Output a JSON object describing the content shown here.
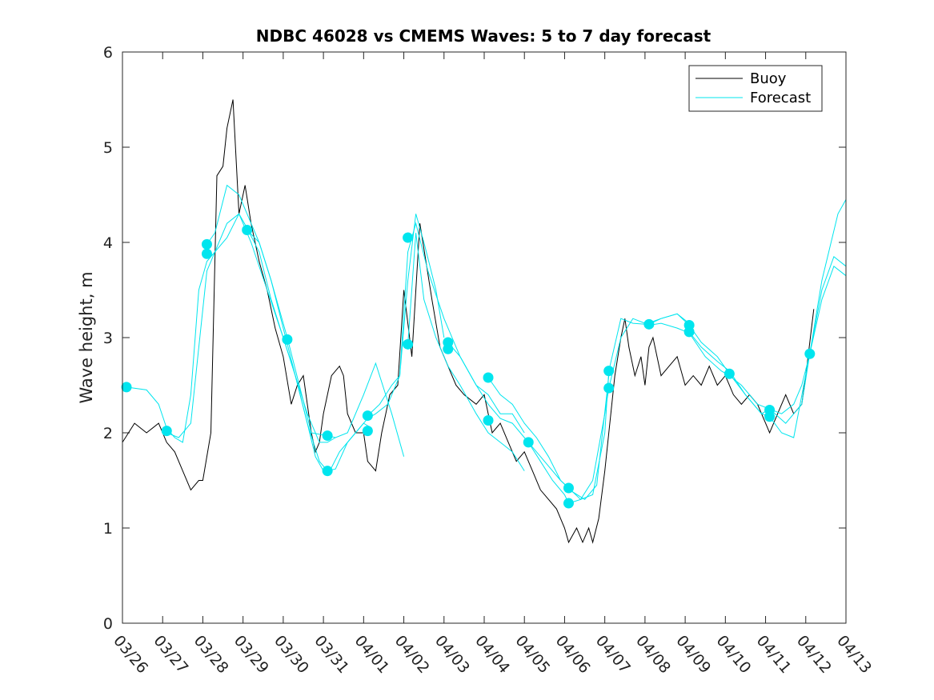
{
  "chart_data": {
    "type": "line",
    "title": "NDBC 46028 vs CMEMS Waves: 5 to 7 day forecast",
    "xlabel": "",
    "ylabel": "Wave height, m",
    "xlim": [
      0,
      18
    ],
    "ylim": [
      0,
      6
    ],
    "yticks": [
      0,
      1,
      2,
      3,
      4,
      5,
      6
    ],
    "x_tick_labels": [
      "03/26",
      "03/27",
      "03/28",
      "03/29",
      "03/30",
      "03/31",
      "04/01",
      "04/02",
      "04/03",
      "04/04",
      "04/05",
      "04/06",
      "04/07",
      "04/08",
      "04/09",
      "04/10",
      "04/11",
      "04/12",
      "04/13"
    ],
    "legend": {
      "position": "top-right",
      "entries": [
        "Buoy",
        "Forecast"
      ]
    },
    "colors": {
      "buoy": "#000000",
      "forecast": "#00e5ee"
    },
    "series": [
      {
        "name": "Buoy",
        "x": [
          0,
          0.3,
          0.6,
          0.9,
          1.1,
          1.3,
          1.5,
          1.7,
          1.9,
          2.0,
          2.2,
          2.35,
          2.5,
          2.6,
          2.75,
          2.9,
          3.05,
          3.2,
          3.4,
          3.6,
          3.8,
          4.0,
          4.2,
          4.35,
          4.5,
          4.7,
          4.8,
          4.9,
          5.0,
          5.2,
          5.4,
          5.5,
          5.6,
          5.8,
          6.0,
          6.1,
          6.3,
          6.45,
          6.55,
          6.65,
          6.85,
          7.0,
          7.2,
          7.4,
          7.55,
          7.7,
          7.9,
          8.1,
          8.3,
          8.5,
          8.8,
          9.0,
          9.2,
          9.4,
          9.6,
          9.8,
          10.0,
          10.2,
          10.4,
          10.6,
          10.8,
          11.0,
          11.1,
          11.3,
          11.45,
          11.6,
          11.7,
          11.85,
          12.0,
          12.1,
          12.25,
          12.4,
          12.5,
          12.6,
          12.75,
          12.9,
          13.0,
          13.1,
          13.2,
          13.4,
          13.6,
          13.8,
          14.0,
          14.2,
          14.4,
          14.6,
          14.8,
          15.0,
          15.2,
          15.4,
          15.6,
          15.8,
          16.0,
          16.1,
          16.3,
          16.5,
          16.7,
          16.9,
          17.0,
          17.2
        ],
        "values": [
          1.9,
          2.1,
          2.0,
          2.1,
          1.9,
          1.8,
          1.6,
          1.4,
          1.5,
          1.5,
          2.0,
          4.7,
          4.8,
          5.2,
          5.5,
          4.3,
          4.6,
          4.2,
          3.8,
          3.5,
          3.1,
          2.8,
          2.3,
          2.5,
          2.6,
          2.0,
          1.8,
          1.9,
          2.2,
          2.6,
          2.7,
          2.6,
          2.2,
          2.0,
          2.0,
          1.7,
          1.6,
          2.0,
          2.2,
          2.4,
          2.5,
          3.5,
          2.8,
          4.2,
          3.8,
          3.4,
          2.9,
          2.7,
          2.5,
          2.4,
          2.3,
          2.4,
          2.0,
          2.1,
          1.9,
          1.7,
          1.8,
          1.6,
          1.4,
          1.3,
          1.2,
          1.0,
          0.85,
          1.0,
          0.85,
          1.0,
          0.85,
          1.1,
          1.6,
          2.0,
          2.6,
          3.0,
          3.2,
          2.9,
          2.6,
          2.8,
          2.5,
          2.9,
          3.0,
          2.6,
          2.7,
          2.8,
          2.5,
          2.6,
          2.5,
          2.7,
          2.5,
          2.6,
          2.4,
          2.3,
          2.4,
          2.3,
          2.1,
          2.0,
          2.2,
          2.4,
          2.2,
          2.3,
          2.6,
          3.3
        ]
      },
      {
        "name": "Forecast run 1",
        "x": [
          0.1,
          0.6,
          0.9,
          1.1,
          1.3,
          1.5,
          1.7,
          1.9,
          2.1,
          2.3,
          2.6,
          2.9,
          3.2,
          3.6,
          4.0,
          4.3,
          4.6,
          4.9,
          5.1,
          5.3
        ],
        "values": [
          2.48,
          2.45,
          2.3,
          2.05,
          1.95,
          1.9,
          2.4,
          3.5,
          3.8,
          3.9,
          4.05,
          4.3,
          4.0,
          3.5,
          3.0,
          2.6,
          2.2,
          1.9,
          1.9,
          1.95
        ]
      },
      {
        "name": "Forecast run 2",
        "x": [
          1.1,
          1.4,
          1.7,
          1.9,
          2.1,
          2.3,
          2.6,
          2.9,
          3.1,
          3.4,
          3.7,
          4.0,
          4.3,
          4.6,
          4.8,
          5.0,
          5.1,
          5.4,
          5.8,
          6.0,
          6.2
        ],
        "values": [
          2.0,
          1.95,
          2.1,
          2.9,
          3.7,
          3.9,
          4.2,
          4.3,
          4.15,
          3.9,
          3.4,
          3.0,
          2.6,
          2.1,
          1.75,
          1.6,
          1.55,
          1.8,
          2.0,
          2.1,
          2.05
        ]
      },
      {
        "name": "Forecast run 3",
        "x": [
          2.1,
          2.3,
          2.6,
          2.9,
          3.1,
          3.4,
          3.7,
          4.1,
          4.4,
          4.7,
          5.1,
          5.3,
          5.6,
          6.0,
          6.3,
          6.7,
          7.0
        ],
        "values": [
          3.98,
          4.1,
          4.6,
          4.5,
          4.3,
          4.0,
          3.6,
          3.0,
          2.5,
          2.0,
          1.97,
          1.95,
          2.0,
          2.4,
          2.73,
          2.2,
          1.75
        ]
      },
      {
        "name": "Forecast run 4",
        "x": [
          3.1,
          3.4,
          3.7,
          4.0,
          4.3,
          4.6,
          4.9,
          5.1,
          5.3,
          5.6,
          6.0,
          6.1,
          6.3,
          6.6,
          6.9,
          7.1,
          7.3,
          7.5,
          7.8,
          8.0
        ],
        "values": [
          4.13,
          4.0,
          3.6,
          3.1,
          2.6,
          2.1,
          1.7,
          1.6,
          1.62,
          1.9,
          2.1,
          2.15,
          2.2,
          2.3,
          2.6,
          3.6,
          4.3,
          4.0,
          3.5,
          3.0
        ]
      },
      {
        "name": "Forecast run 5",
        "x": [
          6.1,
          6.4,
          6.7,
          6.9,
          7.1,
          7.3,
          7.6,
          8.0,
          8.4,
          8.8,
          9.1,
          9.4,
          9.7,
          10.0
        ],
        "values": [
          2.18,
          2.3,
          2.5,
          2.6,
          3.9,
          4.2,
          3.7,
          3.2,
          2.8,
          2.5,
          2.4,
          2.2,
          2.2,
          2.0
        ]
      },
      {
        "name": "Forecast run 6",
        "x": [
          7.1,
          7.3,
          7.5,
          7.8,
          8.1,
          8.4,
          8.8,
          9.1,
          9.4,
          9.7,
          10.0
        ],
        "values": [
          2.93,
          4.1,
          3.4,
          3.0,
          2.7,
          2.5,
          2.2,
          2.0,
          1.9,
          1.8,
          1.6
        ]
      },
      {
        "name": "Forecast run 7",
        "x": [
          8.1,
          8.4,
          8.8,
          9.1,
          9.4,
          9.7,
          10.0,
          10.3,
          10.6,
          10.9,
          11.2,
          11.5,
          11.8,
          12.1
        ],
        "values": [
          2.95,
          2.8,
          2.5,
          2.3,
          2.15,
          2.1,
          1.95,
          1.8,
          1.65,
          1.5,
          1.38,
          1.3,
          1.45,
          2.6
        ]
      },
      {
        "name": "Forecast run 8",
        "x": [
          9.1,
          9.4,
          9.7,
          10.0,
          10.3,
          10.6,
          10.9,
          11.1,
          11.4,
          11.7,
          12.0,
          12.1,
          12.4,
          12.7,
          13.0,
          13.4,
          13.8,
          14.1
        ],
        "values": [
          2.58,
          2.4,
          2.3,
          2.1,
          1.95,
          1.75,
          1.5,
          1.42,
          1.3,
          1.35,
          2.0,
          2.65,
          3.2,
          3.15,
          3.14,
          3.2,
          3.25,
          3.15
        ]
      },
      {
        "name": "Forecast run 9",
        "x": [
          10.1,
          10.4,
          10.7,
          11.0,
          11.1,
          11.4,
          11.7,
          12.0,
          12.1,
          12.4,
          12.7,
          13.0,
          13.1,
          13.4,
          13.8,
          14.1,
          14.5,
          14.9,
          15.1
        ],
        "values": [
          1.9,
          1.7,
          1.5,
          1.35,
          1.26,
          1.3,
          1.5,
          2.2,
          2.47,
          3.0,
          3.2,
          3.15,
          3.13,
          3.15,
          3.1,
          3.05,
          2.8,
          2.65,
          2.6
        ]
      },
      {
        "name": "Forecast run 10",
        "x": [
          13.1,
          13.4,
          13.8,
          14.1,
          14.4,
          14.8,
          15.1,
          15.5,
          15.9,
          16.1,
          16.5,
          16.9,
          17.1,
          17.4,
          17.8,
          18.0
        ],
        "values": [
          3.14,
          3.2,
          3.25,
          3.13,
          2.95,
          2.8,
          2.62,
          2.4,
          2.2,
          2.25,
          2.1,
          2.3,
          2.83,
          3.6,
          4.3,
          4.45
        ]
      },
      {
        "name": "Forecast run 11",
        "x": [
          14.1,
          14.4,
          14.8,
          15.1,
          15.5,
          15.9,
          16.1,
          16.4,
          16.7,
          17.1,
          17.4,
          17.7,
          18.0
        ],
        "values": [
          3.06,
          2.9,
          2.75,
          2.65,
          2.4,
          2.2,
          2.17,
          2.0,
          1.95,
          2.83,
          3.4,
          3.75,
          3.65
        ]
      },
      {
        "name": "Forecast run 12",
        "x": [
          15.1,
          15.4,
          15.8,
          16.1,
          16.4,
          16.7,
          16.9,
          17.1,
          17.4,
          17.7,
          18.0
        ],
        "values": [
          2.6,
          2.5,
          2.3,
          2.25,
          2.2,
          2.3,
          2.5,
          2.83,
          3.5,
          3.85,
          3.75
        ]
      }
    ],
    "forecast_markers": {
      "x": [
        0.1,
        1.1,
        2.1,
        2.1,
        3.1,
        4.1,
        5.1,
        5.1,
        6.1,
        6.1,
        7.1,
        7.1,
        8.1,
        8.1,
        9.1,
        9.1,
        10.1,
        11.1,
        11.1,
        12.1,
        12.1,
        13.1,
        14.1,
        14.1,
        15.1,
        16.1,
        16.1,
        17.1
      ],
      "y": [
        2.48,
        2.02,
        3.98,
        3.88,
        4.13,
        2.98,
        1.97,
        1.6,
        2.18,
        2.02,
        4.05,
        2.93,
        2.95,
        2.88,
        2.58,
        2.13,
        1.9,
        1.42,
        1.26,
        2.65,
        2.47,
        3.14,
        3.13,
        3.06,
        2.62,
        2.24,
        2.17,
        2.83
      ]
    }
  }
}
